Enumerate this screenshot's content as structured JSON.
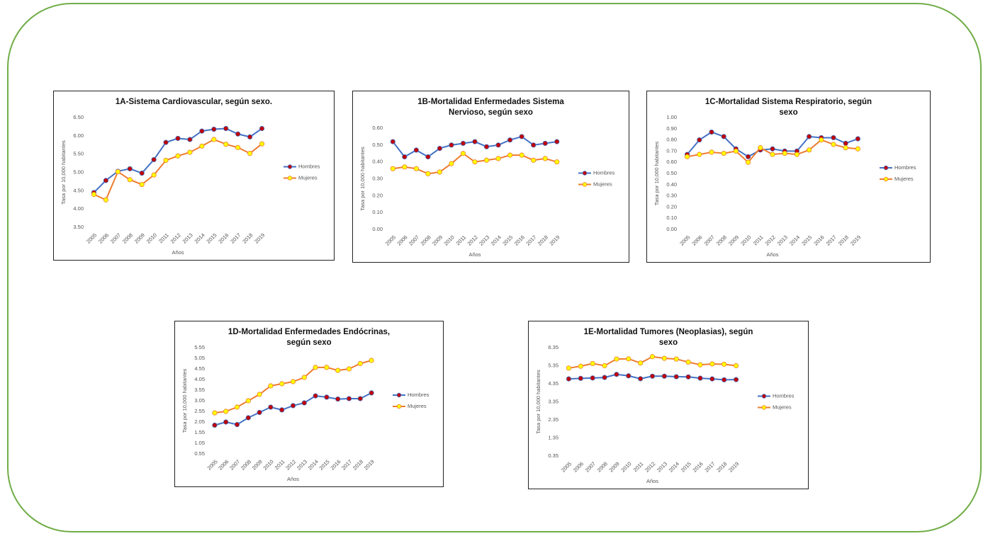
{
  "chart_data": [
    {
      "type": "line",
      "title": "1A-Sistema Cardiovascular, según sexo.",
      "x_label": "Años",
      "y_label": "Tasa por 10,000 habitantes",
      "categories": [
        "2005",
        "2006",
        "2007",
        "2008",
        "2009",
        "2010",
        "2011",
        "2012",
        "2013",
        "2014",
        "2015",
        "2016",
        "2017",
        "2018",
        "2019"
      ],
      "series": [
        {
          "name": "Hombres",
          "color": "#4472c4",
          "marker_color": "#c00000",
          "values": [
            4.45,
            4.78,
            5.03,
            5.1,
            4.98,
            5.35,
            5.82,
            5.93,
            5.9,
            6.13,
            6.18,
            6.2,
            6.05,
            5.97,
            6.2
          ]
        },
        {
          "name": "Mujeres",
          "color": "#ed7d31",
          "marker_color": "#ffff00",
          "values": [
            4.4,
            4.25,
            5.02,
            4.8,
            4.67,
            4.93,
            5.33,
            5.45,
            5.55,
            5.72,
            5.9,
            5.77,
            5.68,
            5.52,
            5.78
          ]
        }
      ],
      "ylim": [
        3.5,
        6.5
      ],
      "yticks": [
        {
          "value": 3.5,
          "label": "3.50"
        },
        {
          "value": 4,
          "label": "4.00"
        },
        {
          "value": 4.5,
          "label": "4.50"
        },
        {
          "value": 5,
          "label": "5.00"
        },
        {
          "value": 5.5,
          "label": "5.50"
        },
        {
          "value": 6,
          "label": "6.00"
        },
        {
          "value": 6.5,
          "label": "6.50"
        }
      ],
      "legend": "right"
    },
    {
      "type": "line",
      "title": "1B-Mortalidad Enfermedades Sistema Nervioso, según sexo",
      "x_label": "Años",
      "y_label": "Tasa por 10,000 habitantes",
      "categories": [
        "2005",
        "2006",
        "2007",
        "2008",
        "2009",
        "2010",
        "2011",
        "2012",
        "2013",
        "2014",
        "2015",
        "2016",
        "2017",
        "2018",
        "2019"
      ],
      "series": [
        {
          "name": "Hombres",
          "color": "#4472c4",
          "marker_color": "#c00000",
          "values": [
            0.52,
            0.43,
            0.47,
            0.43,
            0.48,
            0.5,
            0.51,
            0.52,
            0.49,
            0.5,
            0.53,
            0.55,
            0.5,
            0.51,
            0.52
          ]
        },
        {
          "name": "Mujeres",
          "color": "#ed7d31",
          "marker_color": "#ffff00",
          "values": [
            0.36,
            0.37,
            0.36,
            0.33,
            0.34,
            0.39,
            0.45,
            0.4,
            0.41,
            0.42,
            0.44,
            0.44,
            0.41,
            0.42,
            0.4
          ]
        }
      ],
      "ylim": [
        0,
        0.6
      ],
      "yticks": [
        {
          "value": 0,
          "label": "0.00"
        },
        {
          "value": 0.1,
          "label": "0.10"
        },
        {
          "value": 0.2,
          "label": "0.20"
        },
        {
          "value": 0.3,
          "label": "0.30"
        },
        {
          "value": 0.4,
          "label": "0.40"
        },
        {
          "value": 0.5,
          "label": "0.50"
        },
        {
          "value": 0.6,
          "label": "0.60"
        }
      ],
      "legend": "right"
    },
    {
      "type": "line",
      "title": "1C-Mortalidad Sistema Respiratorio, según sexo",
      "x_label": "Años",
      "y_label": "Tasa por 10,000 habitantes",
      "categories": [
        "2005",
        "2006",
        "2007",
        "2008",
        "2009",
        "2010",
        "2011",
        "2012",
        "2013",
        "2014",
        "2015",
        "2016",
        "2017",
        "2018",
        "2019"
      ],
      "series": [
        {
          "name": "Hombres",
          "color": "#4472c4",
          "marker_color": "#c00000",
          "values": [
            0.67,
            0.8,
            0.87,
            0.83,
            0.72,
            0.65,
            0.71,
            0.72,
            0.7,
            0.7,
            0.83,
            0.82,
            0.82,
            0.77,
            0.81
          ]
        },
        {
          "name": "Mujeres",
          "color": "#ed7d31",
          "marker_color": "#ffff00",
          "values": [
            0.65,
            0.67,
            0.69,
            0.68,
            0.7,
            0.6,
            0.73,
            0.67,
            0.68,
            0.67,
            0.71,
            0.8,
            0.76,
            0.73,
            0.72
          ]
        }
      ],
      "ylim": [
        0,
        1
      ],
      "yticks": [
        {
          "value": 0,
          "label": "0.00"
        },
        {
          "value": 0.1,
          "label": "0.10"
        },
        {
          "value": 0.2,
          "label": "0.20"
        },
        {
          "value": 0.3,
          "label": "0.30"
        },
        {
          "value": 0.4,
          "label": "0.40"
        },
        {
          "value": 0.5,
          "label": "0.50"
        },
        {
          "value": 0.6,
          "label": "0.60"
        },
        {
          "value": 0.7,
          "label": "0.70"
        },
        {
          "value": 0.8,
          "label": "0.80"
        },
        {
          "value": 0.9,
          "label": "0.90"
        },
        {
          "value": 1,
          "label": "1.00"
        }
      ],
      "legend": "right"
    },
    {
      "type": "line",
      "title": "1D-Mortalidad Enfermedades Endócrinas, según sexo",
      "x_label": "Años",
      "y_label": "Tasa por 10,000 habitantes",
      "categories": [
        "2005",
        "2006",
        "2007",
        "2008",
        "2009",
        "2010",
        "2011",
        "2012",
        "2013",
        "2014",
        "2015",
        "2016",
        "2017",
        "2018",
        "2019"
      ],
      "series": [
        {
          "name": "Hombres",
          "color": "#4472c4",
          "marker_color": "#c00000",
          "values": [
            1.9,
            2.05,
            1.93,
            2.25,
            2.5,
            2.75,
            2.62,
            2.82,
            2.95,
            3.28,
            3.22,
            3.13,
            3.15,
            3.15,
            3.42
          ]
        },
        {
          "name": "Mujeres",
          "color": "#ed7d31",
          "marker_color": "#ffff00",
          "values": [
            2.48,
            2.55,
            2.75,
            3.05,
            3.35,
            3.75,
            3.85,
            3.95,
            4.15,
            4.62,
            4.62,
            4.48,
            4.55,
            4.8,
            4.95
          ]
        }
      ],
      "ylim": [
        0.55,
        5.55
      ],
      "yticks": [
        0.55,
        1.05,
        1.55,
        2.05,
        2.55,
        3.05,
        3.55,
        4.05,
        4.55,
        5.05,
        5.55
      ],
      "legend": "right"
    },
    {
      "type": "line",
      "title": "1E-Mortalidad Tumores (Neoplasias), según sexo",
      "x_label": "Años",
      "y_label": "Tasa por 10,000 habitantes",
      "categories": [
        "2005",
        "2006",
        "2007",
        "2008",
        "2009",
        "2010",
        "2011",
        "2012",
        "2013",
        "2014",
        "2015",
        "2016",
        "2017",
        "2018",
        "2019"
      ],
      "series": [
        {
          "name": "Hombres",
          "color": "#4472c4",
          "marker_color": "#c00000",
          "values": [
            4.62,
            4.65,
            4.67,
            4.7,
            4.87,
            4.79,
            4.63,
            4.77,
            4.77,
            4.74,
            4.73,
            4.66,
            4.62,
            4.57,
            4.58
          ]
        },
        {
          "name": "Mujeres",
          "color": "#ed7d31",
          "marker_color": "#ffff00",
          "values": [
            5.22,
            5.32,
            5.47,
            5.35,
            5.72,
            5.73,
            5.5,
            5.85,
            5.76,
            5.72,
            5.55,
            5.4,
            5.45,
            5.43,
            5.35
          ]
        }
      ],
      "ylim": [
        0.35,
        6.35
      ],
      "yticks": [
        0.35,
        1.35,
        2.35,
        3.35,
        4.35,
        5.35,
        6.35
      ],
      "legend": "right"
    }
  ]
}
